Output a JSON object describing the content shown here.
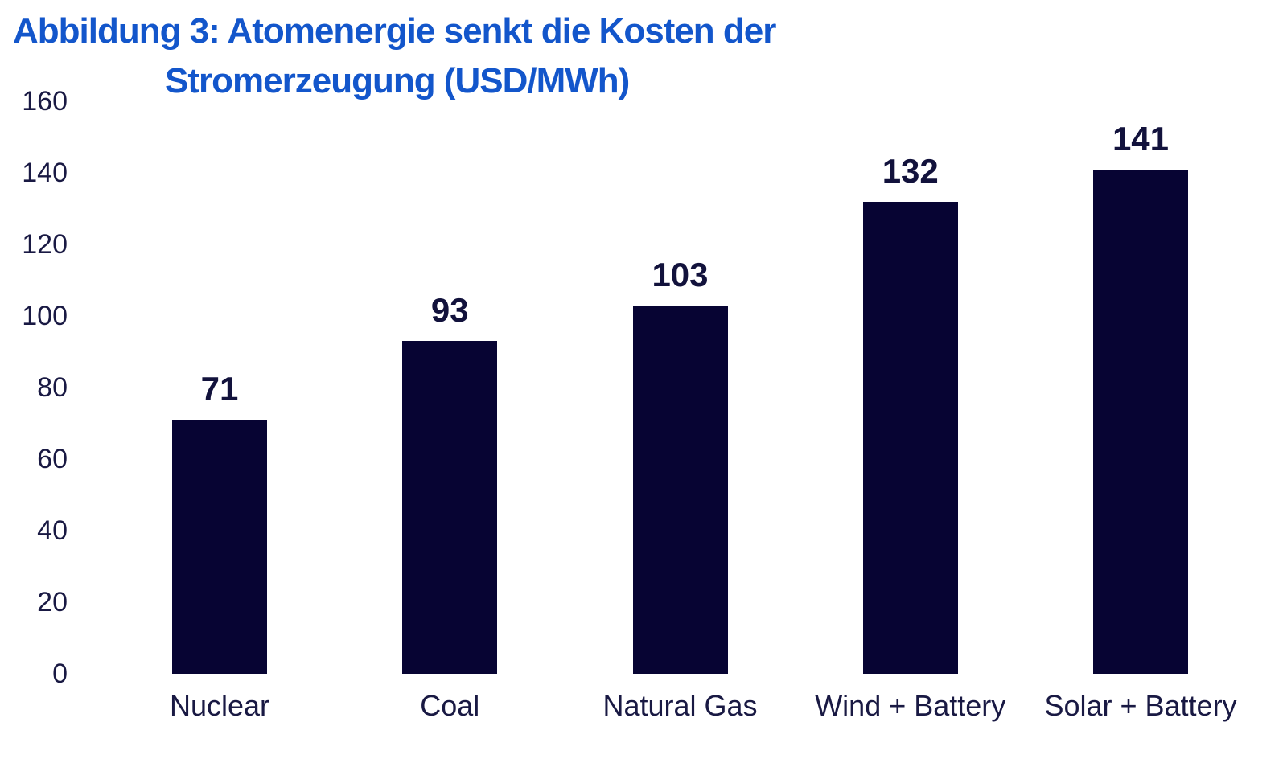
{
  "figure": {
    "title_line1": "Abbildung 3: Atomenergie senkt die Kosten der",
    "title_line2": "Stromerzeugung (USD/MWh)"
  },
  "chart_data": {
    "type": "bar",
    "title": "Abbildung 3: Atomenergie senkt die Kosten der Stromerzeugung (USD/MWh)",
    "categories": [
      "Nuclear",
      "Coal",
      "Natural Gas",
      "Wind + Battery",
      "Solar + Battery"
    ],
    "values": [
      71,
      93,
      103,
      132,
      141
    ],
    "xlabel": "",
    "ylabel": "",
    "ylim": [
      0,
      160
    ],
    "yticks": [
      0,
      20,
      40,
      60,
      80,
      100,
      120,
      140,
      160
    ],
    "grid": false,
    "legend": false,
    "value_labels_shown": true,
    "colors": {
      "bar": "#070433",
      "axis_text": "#191943",
      "value_label": "#12123c",
      "title": "#1356cb",
      "background": "#ffffff"
    }
  }
}
